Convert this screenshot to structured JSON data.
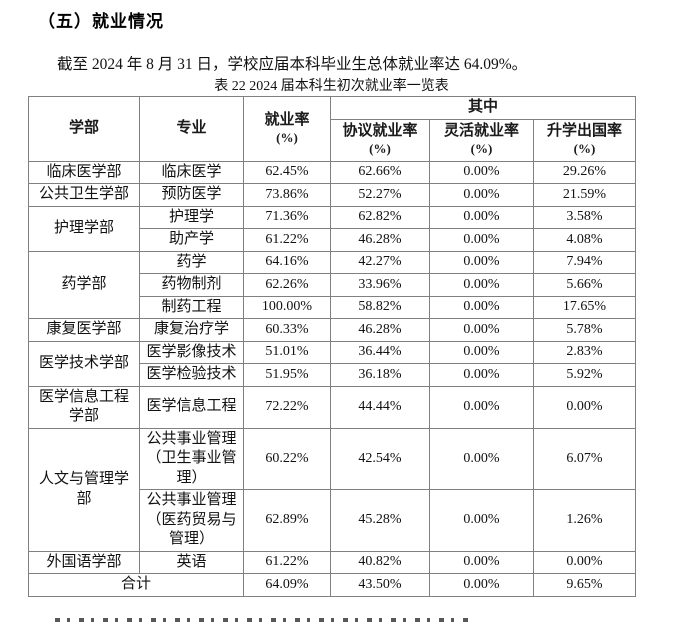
{
  "page": {
    "section_heading": "（五）就业情况",
    "intro_paragraph": "截至 2024 年 8 月 31 日，学校应届本科毕业生总体就业率达 64.09%。",
    "table_caption": "表 22 2024 届本科生初次就业率一览表"
  },
  "colors": {
    "text": "#111111",
    "table_border": "#808080",
    "background": "#ffffff"
  },
  "table": {
    "headers": {
      "faculty": "学部",
      "major": "专业",
      "employment_rate": "就业率",
      "among_which": "其中",
      "agreement_rate": "协议就业率",
      "flexible_rate": "灵活就业率",
      "further_study_rate": "升学出国率",
      "unit": "(%)"
    },
    "groups": [
      {
        "faculty": "临床医学部",
        "rows": [
          [
            "临床医学",
            "62.45%",
            "62.66%",
            "0.00%",
            "29.26%"
          ]
        ]
      },
      {
        "faculty": "公共卫生学部",
        "rows": [
          [
            "预防医学",
            "73.86%",
            "52.27%",
            "0.00%",
            "21.59%"
          ]
        ]
      },
      {
        "faculty": "护理学部",
        "rows": [
          [
            "护理学",
            "71.36%",
            "62.82%",
            "0.00%",
            "3.58%"
          ],
          [
            "助产学",
            "61.22%",
            "46.28%",
            "0.00%",
            "4.08%"
          ]
        ]
      },
      {
        "faculty": "药学部",
        "rows": [
          [
            "药学",
            "64.16%",
            "42.27%",
            "0.00%",
            "7.94%"
          ],
          [
            "药物制剂",
            "62.26%",
            "33.96%",
            "0.00%",
            "5.66%"
          ],
          [
            "制药工程",
            "100.00%",
            "58.82%",
            "0.00%",
            "17.65%"
          ]
        ]
      },
      {
        "faculty": "康复医学部",
        "rows": [
          [
            "康复治疗学",
            "60.33%",
            "46.28%",
            "0.00%",
            "5.78%"
          ]
        ]
      },
      {
        "faculty": "医学技术学部",
        "rows": [
          [
            "医学影像技术",
            "51.01%",
            "36.44%",
            "0.00%",
            "2.83%"
          ],
          [
            "医学检验技术",
            "51.95%",
            "36.18%",
            "0.00%",
            "5.92%"
          ]
        ]
      },
      {
        "faculty": "医学信息工程学部",
        "rows": [
          [
            "医学信息工程",
            "72.22%",
            "44.44%",
            "0.00%",
            "0.00%"
          ]
        ]
      },
      {
        "faculty": "人文与管理学部",
        "rows": [
          [
            "公共事业管理（卫生事业管理）",
            "60.22%",
            "42.54%",
            "0.00%",
            "6.07%"
          ],
          [
            "公共事业管理（医药贸易与管理）",
            "62.89%",
            "45.28%",
            "0.00%",
            "1.26%"
          ]
        ]
      },
      {
        "faculty": "外国语学部",
        "rows": [
          [
            "英语",
            "61.22%",
            "40.82%",
            "0.00%",
            "0.00%"
          ]
        ]
      }
    ],
    "total_row": {
      "label": "合计",
      "values": [
        "64.09%",
        "43.50%",
        "0.00%",
        "9.65%"
      ]
    }
  }
}
